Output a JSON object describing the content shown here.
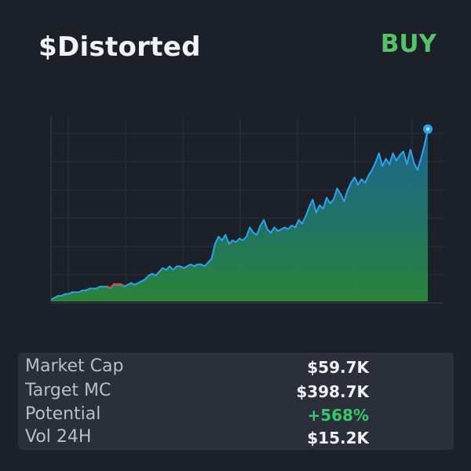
{
  "header": {
    "title": "$Distorted",
    "action": "BUY"
  },
  "colors": {
    "background": "#1c2028",
    "accent_green": "#56c26a",
    "line_blue": "#2aa3f0",
    "area_top": "#1f6d9c",
    "area_bottom": "#2d8f3b",
    "negative_red": "#d64336",
    "positive_green": "#38c76a"
  },
  "stats": [
    {
      "label": "Market Cap",
      "value": "$59.7K",
      "tone": "neutral"
    },
    {
      "label": "Target MC",
      "value": "$398.7K",
      "tone": "neutral"
    },
    {
      "label": "Potential",
      "value": "+568%",
      "tone": "positive"
    },
    {
      "label": "Vol 24H",
      "value": "$15.2K",
      "tone": "neutral"
    }
  ],
  "chart_data": {
    "type": "area",
    "title": "",
    "xlabel": "",
    "ylabel": "",
    "grid": true,
    "ylim": [
      0,
      100
    ],
    "series": [
      {
        "values": [
          1,
          2,
          3,
          3,
          4,
          4,
          5,
          5,
          5,
          6,
          6,
          7,
          7,
          7,
          8,
          8,
          8,
          7,
          9,
          9,
          9,
          8,
          9,
          10,
          9,
          10,
          11,
          12,
          14,
          15,
          14,
          16,
          18,
          17,
          19,
          17,
          19,
          19,
          18,
          19,
          20,
          19,
          20,
          20,
          19,
          21,
          23,
          31,
          35,
          33,
          36,
          31,
          33,
          32,
          34,
          33,
          35,
          40,
          37,
          36,
          41,
          44,
          39,
          37,
          40,
          38,
          39,
          40,
          39,
          41,
          40,
          44,
          42,
          46,
          51,
          55,
          48,
          52,
          50,
          56,
          53,
          55,
          61,
          58,
          54,
          60,
          64,
          67,
          63,
          66,
          64,
          68,
          71,
          75,
          80,
          73,
          77,
          74,
          80,
          76,
          79,
          81,
          74,
          82,
          75,
          71,
          77,
          84,
          93
        ]
      }
    ]
  }
}
